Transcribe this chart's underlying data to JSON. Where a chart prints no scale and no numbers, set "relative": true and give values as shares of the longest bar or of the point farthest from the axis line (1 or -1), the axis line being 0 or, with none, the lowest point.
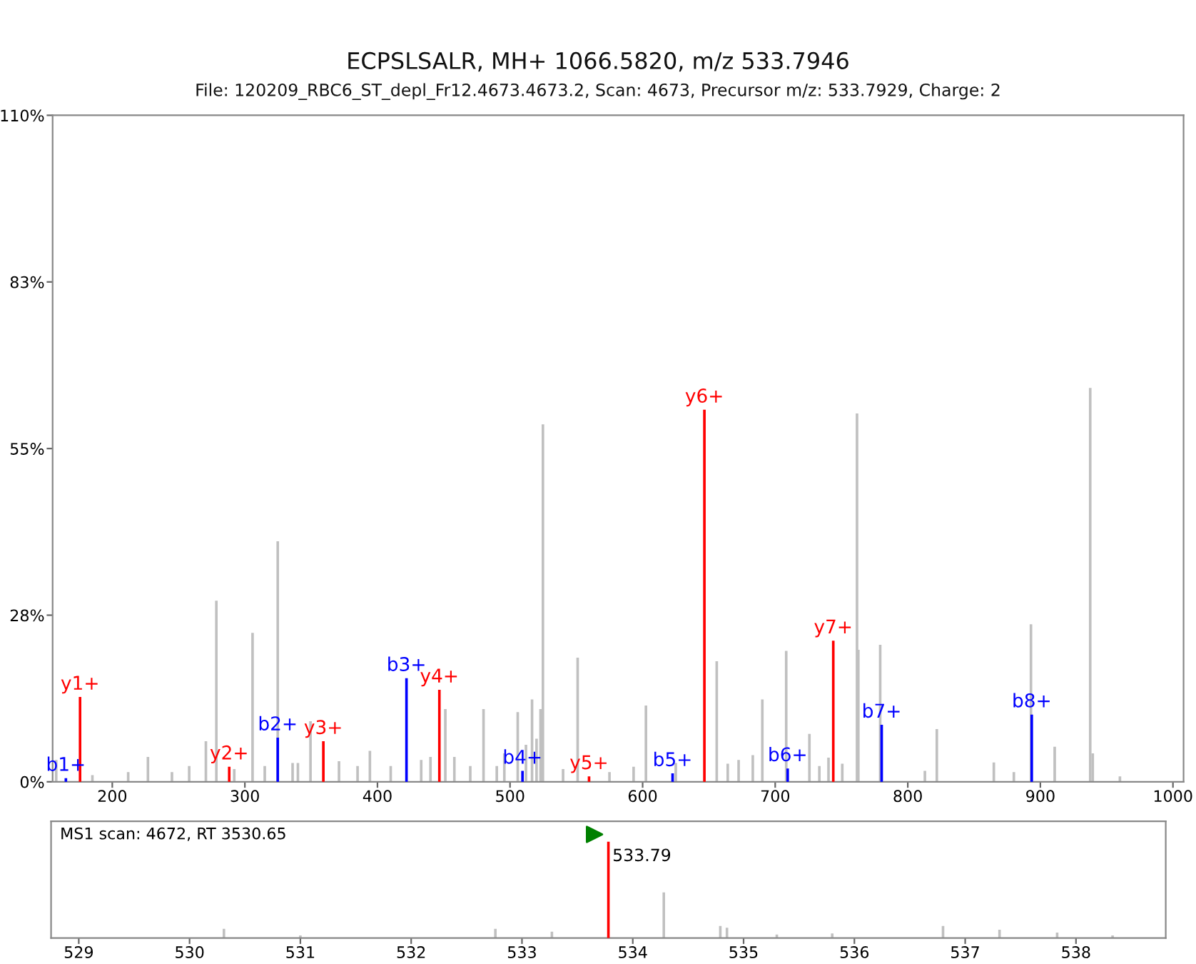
{
  "chart_data": [
    {
      "type": "bar",
      "title": "ECPSLSALR, MH+ 1066.5820, m/z 533.7946",
      "subtitle": "File: 120209_RBC6_ST_depl_Fr12.4673.4673.2, Scan: 4673, Precursor m/z: 533.7929, Charge: 2",
      "xlim": [
        155,
        1008
      ],
      "xticks": [
        200,
        300,
        400,
        500,
        600,
        700,
        800,
        900,
        1000
      ],
      "ylim": [
        0,
        110
      ],
      "yticks": [
        {
          "value": 0,
          "label": "0%"
        },
        {
          "value": 27.5,
          "label": "28%"
        },
        {
          "value": 55,
          "label": "55%"
        },
        {
          "value": 82.5,
          "label": "83%"
        },
        {
          "value": 110,
          "label": "110%"
        }
      ],
      "grid": false,
      "legend": false,
      "series": [
        {
          "color": "#c0c0c0",
          "x": [
            157.7,
            185,
            212,
            226.9,
            245,
            258,
            270.6,
            278.5,
            292,
            305.8,
            315,
            324.8,
            336,
            340,
            349.5,
            371,
            385,
            394.3,
            410,
            433,
            440,
            451.2,
            458,
            470,
            480,
            490,
            495.7,
            505.8,
            512,
            516.6,
            520,
            523,
            524.8,
            540,
            551,
            575,
            593.2,
            602.5,
            625,
            646.6,
            655.9,
            664.2,
            672.4,
            683.1,
            690.3,
            708.3,
            725.8,
            733.3,
            740.2,
            744.5,
            750.6,
            761.7,
            762.7,
            779.2,
            812.9,
            821.9,
            864.9,
            880,
            892.9,
            910.8,
            937.6,
            939.5,
            960
          ],
          "values": [
            3.5,
            1.0,
            1.5,
            4.0,
            1.5,
            2.5,
            6.6,
            29.8,
            2.0,
            24.5,
            2.5,
            39.6,
            3.0,
            3.0,
            9.9,
            3.3,
            2.5,
            5.0,
            2.5,
            3.5,
            4.0,
            11.9,
            4.0,
            2.5,
            11.9,
            2.5,
            4.6,
            11.4,
            6.0,
            13.5,
            7.0,
            11.9,
            58.9,
            2.0,
            20.4,
            1.5,
            2.4,
            12.5,
            3.0,
            null,
            19.8,
            2.9,
            3.5,
            4.3,
            13.5,
            21.5,
            7.8,
            2.5,
            3.9,
            null,
            2.9,
            60.7,
            21.7,
            22.5,
            1.7,
            8.6,
            3.1,
            1.5,
            25.9,
            5.7,
            64.9,
            4.6,
            0.8
          ]
        },
        {
          "color": "#ff0000",
          "x": [
            175.7,
            288.2,
            359.2,
            446.7,
            559.6,
            646.6,
            743.8
          ],
          "values": [
            13.9,
            2.4,
            6.6,
            15.1,
            0.8,
            61.3,
            23.2
          ],
          "value_labels": [
            "y1+",
            "y2+",
            "y3+",
            "y4+",
            "y5+",
            "y6+",
            "y7+"
          ]
        },
        {
          "color": "#0000ff",
          "x": [
            165,
            324.8,
            421.9,
            509.4,
            622.6,
            709.4,
            780.3,
            893.5
          ],
          "values": [
            0.5,
            7.2,
            17.0,
            1.7,
            1.3,
            2.1,
            9.3,
            11.0
          ],
          "value_labels": [
            "b1+",
            "b2+",
            "b3+",
            "b4+",
            "b5+",
            "b6+",
            "b7+",
            "b8+"
          ]
        }
      ]
    },
    {
      "type": "bar",
      "relative": true,
      "annotations": [
        "MS1 scan: 4672, RT 3530.65",
        {
          "text": "533.79",
          "x": 533.78,
          "y": 1
        }
      ],
      "xlim": [
        528.75,
        538.81
      ],
      "xticks": [
        529,
        530,
        531,
        532,
        533,
        534,
        535,
        536,
        537,
        538
      ],
      "grid": false,
      "legend": false,
      "series": [
        {
          "color": "#c0c0c0",
          "x": [
            530.31,
            531.0,
            532.76,
            533.27,
            534.28,
            534.79,
            534.85,
            535.3,
            535.8,
            536.8,
            537.31,
            537.83,
            538.33
          ],
          "values": [
            0.09,
            0.02,
            0.09,
            0.06,
            0.47,
            0.12,
            0.1,
            0.03,
            0.04,
            0.12,
            0.08,
            0.05,
            0.02
          ]
        },
        {
          "color": "#ff0000",
          "x": [
            533.78
          ],
          "values": [
            1
          ]
        }
      ]
    }
  ]
}
